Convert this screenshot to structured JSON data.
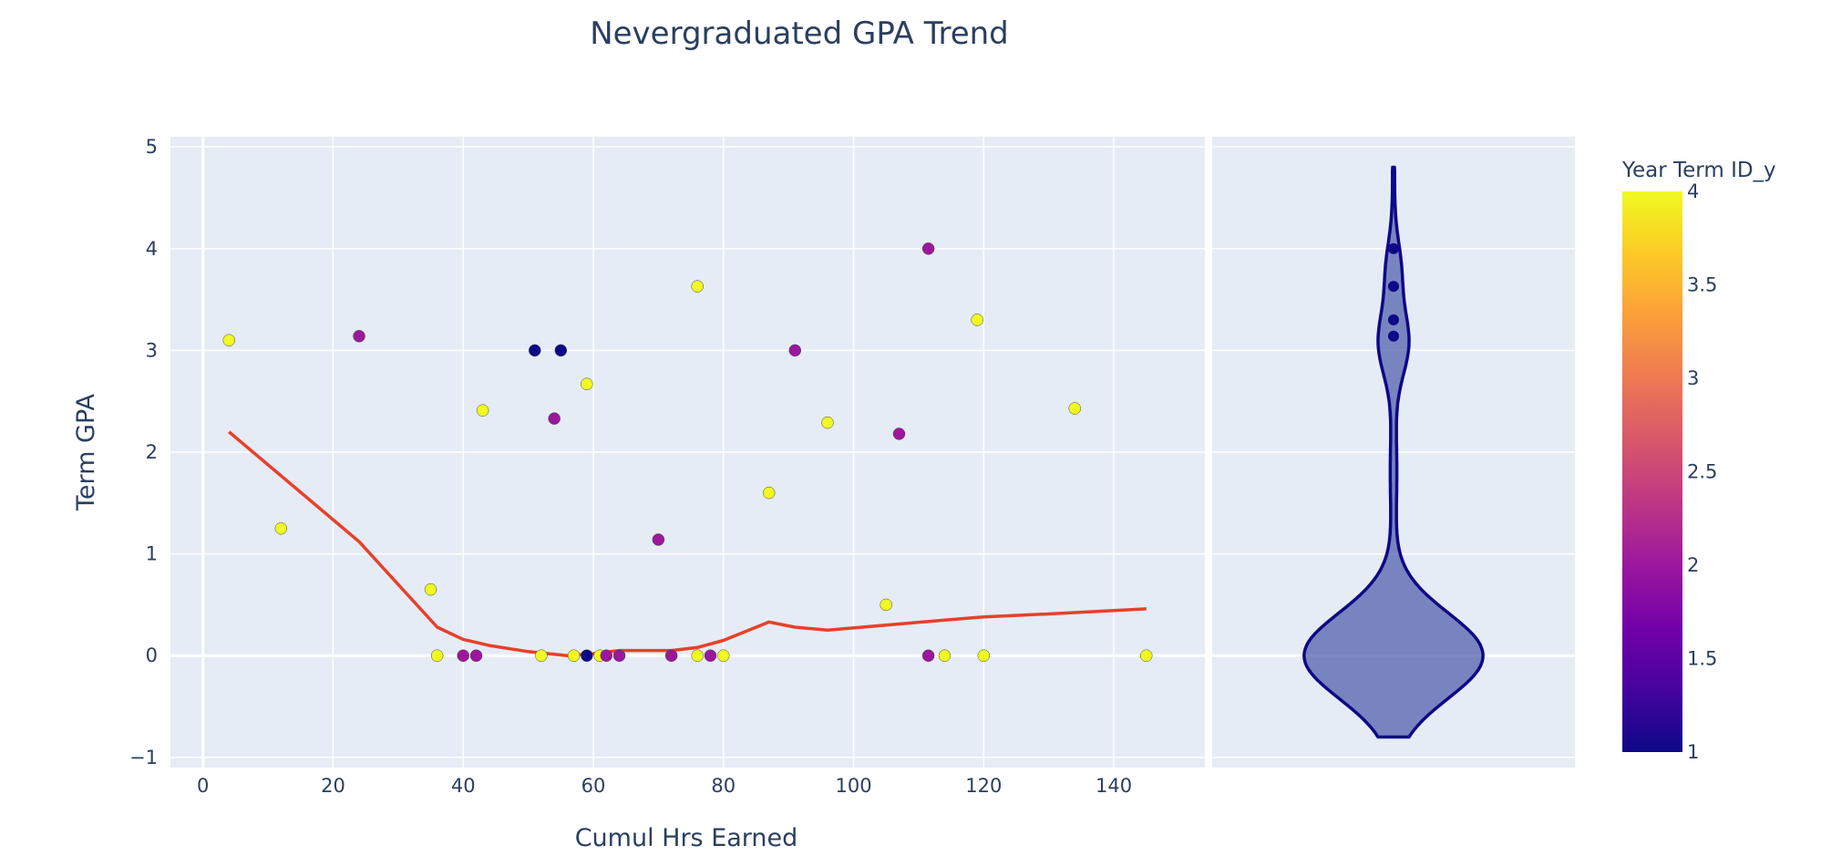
{
  "chart_data": {
    "type": "scatter",
    "title": "Nevergraduated GPA Trend",
    "xlabel": "Cumul Hrs Earned",
    "ylabel": "Term GPA",
    "xlim": [
      -5,
      154
    ],
    "ylim": [
      -1.1,
      5.1
    ],
    "x_ticks": [
      0,
      20,
      40,
      60,
      80,
      100,
      120,
      140
    ],
    "y_ticks": [
      -1,
      0,
      1,
      2,
      3,
      4,
      5
    ],
    "grid": true,
    "colorbar": {
      "title": "Year Term ID_y",
      "range": [
        1,
        4
      ],
      "ticks": [
        1,
        1.5,
        2,
        2.5,
        3,
        3.5,
        4
      ],
      "colorscale": [
        "#0d0887",
        "#46039f",
        "#7201a8",
        "#9c179e",
        "#bd3786",
        "#d8576b",
        "#ed7953",
        "#fb9f3a",
        "#fdca26",
        "#f0f921"
      ]
    },
    "points": [
      {
        "x": 4,
        "y": 3.1,
        "c": 4
      },
      {
        "x": 12,
        "y": 1.25,
        "c": 4
      },
      {
        "x": 24,
        "y": 3.14,
        "c": 2
      },
      {
        "x": 35,
        "y": 0.65,
        "c": 4
      },
      {
        "x": 36,
        "y": 0,
        "c": 4
      },
      {
        "x": 40,
        "y": 0,
        "c": 2
      },
      {
        "x": 42,
        "y": 0,
        "c": 2
      },
      {
        "x": 43,
        "y": 2.41,
        "c": 4
      },
      {
        "x": 51,
        "y": 3.0,
        "c": 1
      },
      {
        "x": 52,
        "y": 0,
        "c": 4
      },
      {
        "x": 54,
        "y": 2.33,
        "c": 2
      },
      {
        "x": 55,
        "y": 3.0,
        "c": 1
      },
      {
        "x": 57,
        "y": 0,
        "c": 4
      },
      {
        "x": 59,
        "y": 2.67,
        "c": 4
      },
      {
        "x": 59,
        "y": 0,
        "c": 1
      },
      {
        "x": 61,
        "y": 0,
        "c": 4
      },
      {
        "x": 62,
        "y": 0,
        "c": 2
      },
      {
        "x": 64,
        "y": 0,
        "c": 2
      },
      {
        "x": 70,
        "y": 1.14,
        "c": 2
      },
      {
        "x": 72,
        "y": 0,
        "c": 2
      },
      {
        "x": 76,
        "y": 3.63,
        "c": 4
      },
      {
        "x": 76,
        "y": 0,
        "c": 4
      },
      {
        "x": 78,
        "y": 0,
        "c": 2
      },
      {
        "x": 80,
        "y": 0,
        "c": 4
      },
      {
        "x": 87,
        "y": 1.6,
        "c": 4
      },
      {
        "x": 91,
        "y": 3.0,
        "c": 2
      },
      {
        "x": 96,
        "y": 2.29,
        "c": 4
      },
      {
        "x": 105,
        "y": 0.5,
        "c": 4
      },
      {
        "x": 107,
        "y": 2.18,
        "c": 2
      },
      {
        "x": 111.5,
        "y": 4.0,
        "c": 2
      },
      {
        "x": 111.5,
        "y": 0,
        "c": 2
      },
      {
        "x": 114,
        "y": 0,
        "c": 4
      },
      {
        "x": 119,
        "y": 3.3,
        "c": 4
      },
      {
        "x": 120,
        "y": 0,
        "c": 4
      },
      {
        "x": 134,
        "y": 2.43,
        "c": 4
      },
      {
        "x": 145,
        "y": 0,
        "c": 4
      }
    ],
    "trend_line": {
      "color": "#e8402a",
      "x": [
        4,
        24,
        36,
        40,
        44,
        50,
        56,
        60,
        64,
        68,
        72,
        76,
        80,
        87,
        91,
        96,
        105,
        114,
        120,
        130,
        145
      ],
      "y": [
        2.2,
        1.12,
        0.28,
        0.16,
        0.1,
        0.04,
        0.0,
        0.02,
        0.05,
        0.05,
        0.05,
        0.08,
        0.15,
        0.33,
        0.28,
        0.25,
        0.3,
        0.35,
        0.38,
        0.41,
        0.46
      ]
    },
    "violin": {
      "fill": "#5a66b0",
      "stroke": "#0d0887",
      "y_range": [
        -0.8,
        4.8
      ],
      "outlier_points": [
        4.0,
        3.63,
        3.3,
        3.14
      ]
    }
  }
}
